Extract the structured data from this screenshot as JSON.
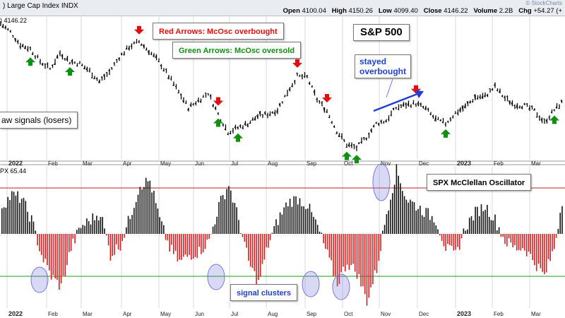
{
  "header": {
    "title": ") Large Cap Index INDX",
    "brand": "© StockCharts",
    "open_label": "Open",
    "open": "4100.04",
    "high_label": "High",
    "high": "4150.26",
    "low_label": "Low",
    "low": "4099.40",
    "close_label": "Close",
    "close": "4146.22",
    "volume_label": "Volume",
    "volume": "2.2B",
    "chg_label": "Chg",
    "chg": "+54.27 (+"
  },
  "price_panel": {
    "legend": ") 4146.22",
    "symbol": "S&P 500",
    "note_red": "Red Arrows: McOsc overbought",
    "note_green": "Green Arrows: McOsc oversold",
    "note_raw": "aw signals (losers)",
    "note_stayed_1": "stayed",
    "note_stayed_2": "overbought"
  },
  "osc_panel": {
    "legend": "PX 65.44",
    "title": "SPX McClellan Oscillator",
    "note_clusters": "signal clusters"
  },
  "colors": {
    "up_bar": "#111111",
    "down_bar": "#d42020",
    "red_arrow": "#e01010",
    "green_arrow": "#109010",
    "upper_line": "#c02020",
    "lower_line": "#10a010",
    "circle": "#7878e0",
    "grid": "#d8d8d8",
    "blue_arrow": "#1f3fd0"
  },
  "chart_data": [
    {
      "type": "line",
      "title": "S&P 500",
      "x_tick_labels": [
        "2022",
        "Feb",
        "Mar",
        "Apr",
        "May",
        "Jun",
        "Jul",
        "Aug",
        "Sep",
        "Oct",
        "Nov",
        "Dec",
        "2023",
        "Feb",
        "Mar"
      ],
      "last_value": 4146.22,
      "series": [
        {
          "name": "S&P 500",
          "values": [
            4780,
            4700,
            4580,
            4540,
            4420,
            4350,
            4500,
            4420,
            4400,
            4330,
            4230,
            4320,
            4460,
            4560,
            4610,
            4520,
            4420,
            4280,
            4130,
            3980,
            4050,
            4120,
            3920,
            3750,
            3790,
            3830,
            3900,
            3920,
            3960,
            4130,
            4280,
            4270,
            4060,
            3950,
            3760,
            3630,
            3600,
            3700,
            3830,
            3860,
            3980,
            4010,
            4020,
            3970,
            3870,
            3830,
            3930,
            3990,
            4080,
            4090,
            4180,
            4070,
            4010,
            4000,
            3950,
            3840,
            3960,
            4050
          ]
        }
      ],
      "annotations": [
        "Red Arrows: McOsc overbought",
        "Green Arrows: McOsc oversold",
        "aw signals (losers)",
        "stayed overbought"
      ]
    },
    {
      "type": "bar",
      "title": "SPX McClellan Oscillator",
      "x_tick_labels": [
        "2022",
        "Feb",
        "Mar",
        "Apr",
        "May",
        "Jun",
        "Jul",
        "Aug",
        "Sep",
        "Oct",
        "Nov",
        "Dec",
        "2023",
        "Feb",
        "Mar"
      ],
      "last_value": 65.44,
      "reference_lines": {
        "overbought": 65,
        "oversold": -60
      },
      "values": [
        40,
        55,
        50,
        20,
        -30,
        -60,
        -75,
        -20,
        10,
        20,
        30,
        -30,
        -15,
        25,
        70,
        75,
        20,
        -20,
        -40,
        -30,
        -25,
        -10,
        40,
        70,
        20,
        -40,
        -70,
        -15,
        20,
        45,
        50,
        40,
        10,
        -30,
        -70,
        -40,
        -55,
        -95,
        -50,
        30,
        90,
        50,
        40,
        30,
        20,
        -20,
        -30,
        10,
        30,
        40,
        20,
        -10,
        -20,
        -20,
        -40,
        -60,
        -20,
        65
      ],
      "annotations": [
        "signal clusters"
      ]
    }
  ]
}
